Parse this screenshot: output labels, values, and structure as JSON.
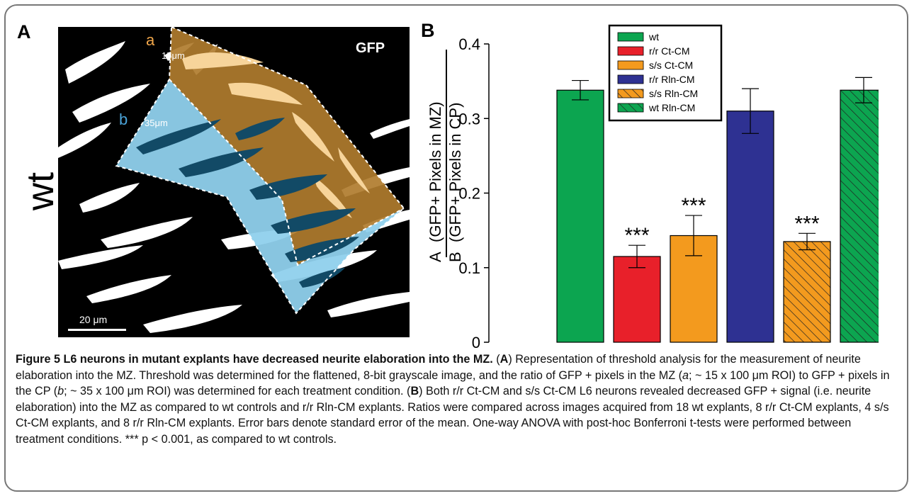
{
  "figure": {
    "panel_a_letter": "A",
    "panel_b_letter": "B",
    "panel_a_side_label": "wt",
    "micrograph": {
      "channel_label": "GFP",
      "roi_a_label": "a",
      "roi_a_size": "15μm",
      "roi_b_label": "b",
      "roi_b_size": "35μm",
      "scale_bar_label": "20 μm",
      "colors": {
        "roi_a": "#b07c2e",
        "roi_b": "#8fd0ec",
        "roi_a_label": "#f0a64a",
        "roi_b_label": "#4aa3d8"
      }
    },
    "caption": {
      "title": "Figure 5 L6 neurons in mutant explants have decreased neurite elaboration into the MZ.",
      "part_a_1": "Representation of threshold analysis for the measurement of neurite elaboration into the MZ. Threshold was determined for the flattened, 8-bit grayscale image, and the ratio of GFP + pixels in the MZ (",
      "part_a_2": "; ~ 15 x 100 μm ROI) to GFP + pixels in the CP (",
      "part_a_3": "; ~ 35 x 100 μm ROI) was determined for each treatment condition.",
      "part_b": "Both r/r Ct-CM and s/s Ct-CM L6 neurons revealed decreased GFP + signal (i.e. neurite elaboration) into the MZ as compared to wt controls and r/r Rln-CM explants. Ratios were compared across images acquired from 18 wt explants, 8 r/r Ct-CM explants, 4 s/s Ct-CM explants, and 8 r/r Rln-CM explants. Error bars denote standard error of the mean. One-way ANOVA with post-hoc Bonferroni t-tests were performed between treatment conditions. *** p < 0.001, as compared to wt controls."
    }
  },
  "chart_data": {
    "type": "bar",
    "categories": [
      "wt",
      "r/r Ct-CM",
      "s/s Ct-CM",
      "r/r Rln-CM",
      "s/s Rln-CM",
      "wt Rln-CM"
    ],
    "values": [
      0.338,
      0.115,
      0.143,
      0.31,
      0.135,
      0.338
    ],
    "errors": [
      0.013,
      0.015,
      0.027,
      0.03,
      0.011,
      0.017
    ],
    "significance": [
      "",
      "***",
      "***",
      "",
      "***",
      ""
    ],
    "colors": [
      "#0ca550",
      "#e8202a",
      "#f39a1e",
      "#2e3192",
      "#f39a1e",
      "#0ca550"
    ],
    "hatched": [
      false,
      false,
      false,
      false,
      true,
      true
    ],
    "ylim": [
      0,
      0.4
    ],
    "yticks": [
      "0",
      "0.1",
      "0.2",
      "0.3",
      "0.4"
    ],
    "ylabel_parts": {
      "a_prefix": "A",
      "b_prefix": "B",
      "numerator": "(GFP+ Pixels in MZ)",
      "denominator": "(GFP+ Pixels in CP)"
    },
    "legend_placement": "top-center",
    "grid": false
  }
}
